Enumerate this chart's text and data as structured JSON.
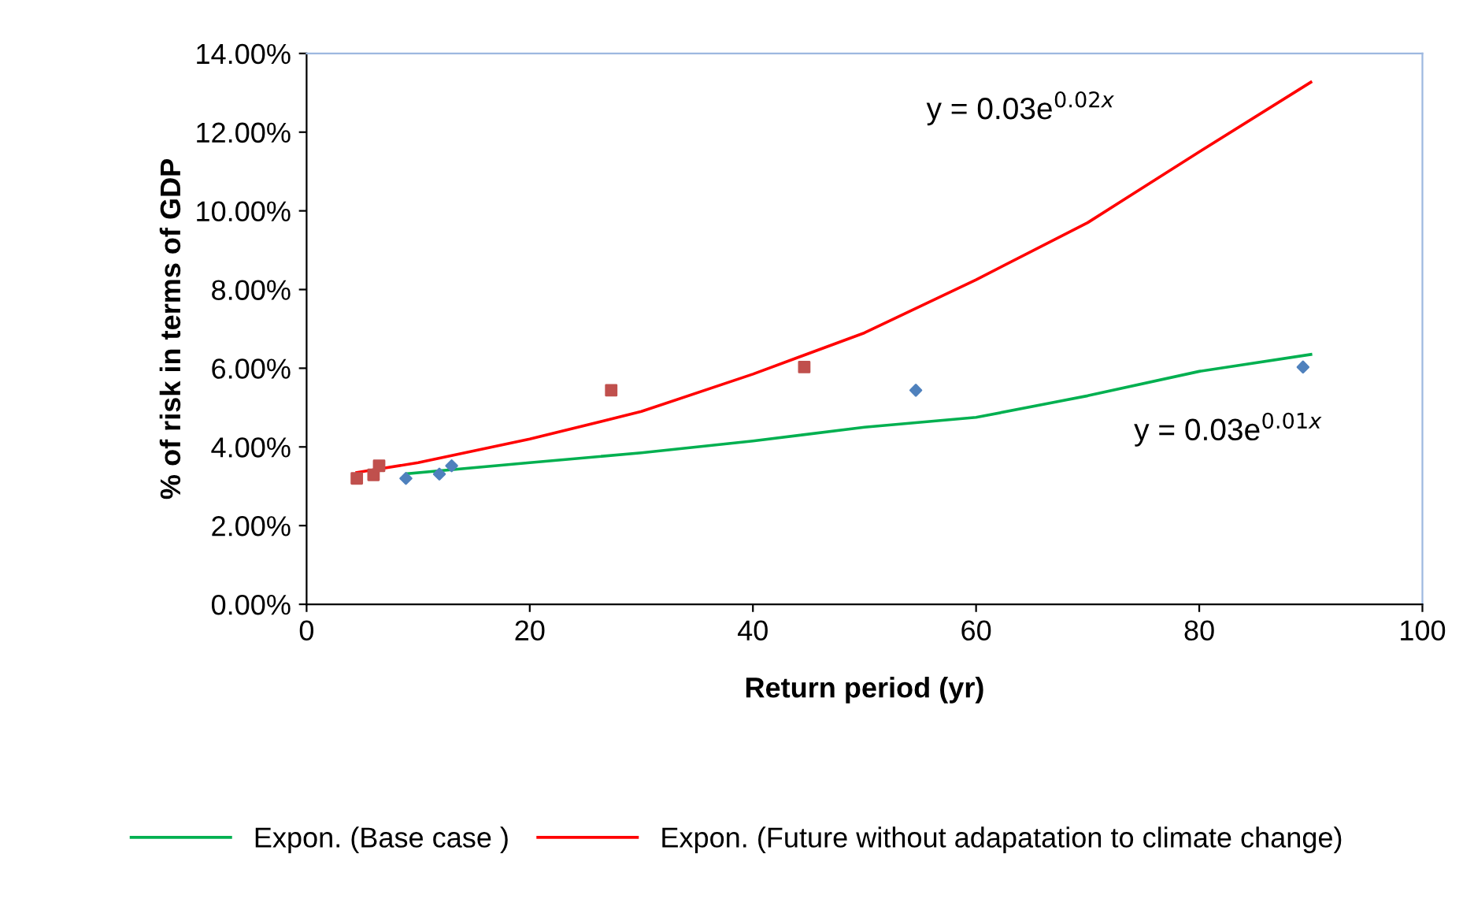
{
  "chart_data": {
    "type": "scatter",
    "xlabel": "Return period (yr)",
    "ylabel": "% of risk in terms of GDP",
    "xlim": [
      0,
      100
    ],
    "xticks": [
      0,
      20,
      40,
      60,
      80,
      100
    ],
    "ylim": [
      0,
      0.14
    ],
    "yticks": [
      {
        "value": 0,
        "label": "0.00%"
      },
      {
        "value": 0.02,
        "label": "2.00%"
      },
      {
        "value": 0.04,
        "label": "4.00%"
      },
      {
        "value": 0.06,
        "label": "6.00%"
      },
      {
        "value": 0.08,
        "label": "8.00%"
      },
      {
        "value": 0.1,
        "label": "10.00%"
      },
      {
        "value": 0.12,
        "label": "12.00%"
      },
      {
        "value": 0.14,
        "label": "14.00%"
      }
    ],
    "grid": false,
    "legend": "bottom",
    "series": [
      {
        "marker": "diamond",
        "color": "#4f81bd",
        "x": [
          8.9,
          11.9,
          13.0,
          54.6,
          89.3
        ],
        "values": [
          0.032,
          0.0331,
          0.0352,
          0.0544,
          0.0603
        ]
      },
      {
        "marker": "square",
        "color": "#c0504d",
        "x": [
          4.5,
          6.0,
          6.5,
          27.3,
          44.6
        ],
        "values": [
          0.032,
          0.0329,
          0.0352,
          0.0544,
          0.0603
        ]
      },
      {
        "type": "line",
        "name": "Expon. (Base case )",
        "color": "#00b050",
        "x": [
          9,
          20,
          30,
          40,
          50,
          60,
          70,
          80,
          90
        ],
        "values": [
          0.0332,
          0.036,
          0.0385,
          0.0415,
          0.045,
          0.0475,
          0.053,
          0.0592,
          0.0635
        ]
      },
      {
        "type": "line",
        "name": "Expon. (Future without adapatation to climate change)",
        "color": "#ff0000",
        "x": [
          4.5,
          10,
          20,
          30,
          40,
          50,
          60,
          70,
          80,
          90
        ],
        "values": [
          0.0335,
          0.036,
          0.042,
          0.049,
          0.0585,
          0.069,
          0.0825,
          0.097,
          0.115,
          0.1327
        ]
      }
    ],
    "annotations": [
      "y = 0.03e$^{0.02x}$",
      "y = 0.03e$^{0.01x}$"
    ]
  }
}
